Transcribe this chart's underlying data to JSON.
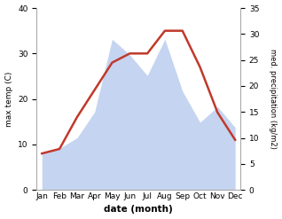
{
  "months": [
    "Jan",
    "Feb",
    "Mar",
    "Apr",
    "May",
    "Jun",
    "Jul",
    "Aug",
    "Sep",
    "Oct",
    "Nov",
    "Dec"
  ],
  "temp": [
    8,
    9,
    16,
    22,
    28,
    30,
    30,
    35,
    35,
    27,
    17,
    11
  ],
  "precip": [
    7,
    8,
    10,
    15,
    29,
    26,
    22,
    29,
    19,
    13,
    16,
    12
  ],
  "temp_color": "#c0392b",
  "precip_color_fill": "#c5d4f0",
  "temp_ylim": [
    0,
    40
  ],
  "precip_ylim": [
    0,
    35
  ],
  "temp_yticks": [
    0,
    10,
    20,
    30,
    40
  ],
  "precip_yticks": [
    0,
    5,
    10,
    15,
    20,
    25,
    30,
    35
  ],
  "xlabel": "date (month)",
  "ylabel_left": "max temp (C)",
  "ylabel_right": "med. precipitation (kg/m2)"
}
